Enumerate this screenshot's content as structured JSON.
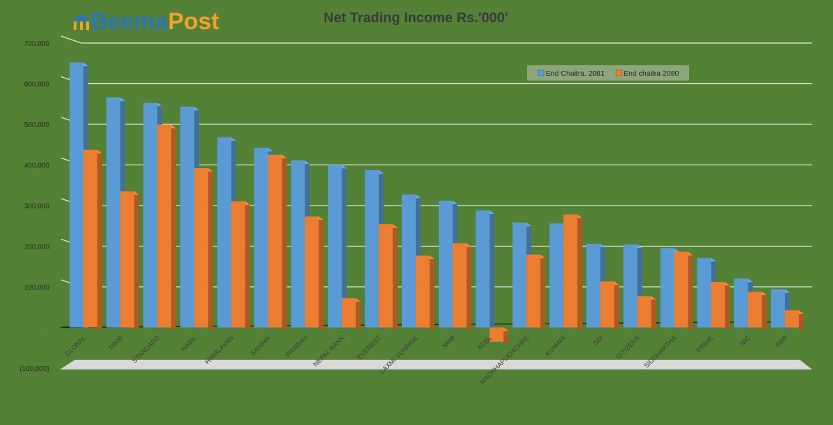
{
  "brand": {
    "name_part1": "Beema",
    "name_part2": "Post",
    "color_part1": "#2E75B6",
    "color_part2": "#F4A12B"
  },
  "chart_data": {
    "type": "bar",
    "title": "Net Trading Income  Rs.'000'",
    "xlabel": "",
    "ylabel": "",
    "ylim": [
      -100000,
      700000
    ],
    "yticks": [
      -100000,
      0,
      100000,
      200000,
      300000,
      400000,
      500000,
      600000,
      700000
    ],
    "ytick_labels": [
      "(100,000)",
      "-",
      "100,000",
      "200,000",
      "300,000",
      "400,000",
      "500,000",
      "600,000",
      "700,000"
    ],
    "grid": true,
    "legend_position": "top-right",
    "categories": [
      "GLOBAL",
      "NIMB",
      "STANDARD",
      "NABIL",
      "HIMALAYAN",
      "SANIMA",
      "PRABHU",
      "NEPAL BANK",
      "EVEREST",
      "LAXMI SUNRISE",
      "NMB",
      "ADBL",
      "MACHHAPUCHCHRE",
      "KUMARI",
      "SBI",
      "CITIZENS",
      "SIDDHARTHA",
      "PRIME",
      "NIC",
      "RBB"
    ],
    "series": [
      {
        "name": "End Chaitra, 2081",
        "color": "#5B9BD5",
        "values": [
          652000,
          566000,
          553000,
          543000,
          468000,
          442000,
          411000,
          400000,
          387000,
          327000,
          312000,
          288000,
          258000,
          256000,
          206000,
          204000,
          195000,
          171000,
          120000,
          94000
        ]
      },
      {
        "name": "End chaitra 2080",
        "color": "#ED7D31",
        "values": [
          437000,
          335000,
          499000,
          392000,
          310000,
          425000,
          273000,
          72000,
          254000,
          177000,
          207000,
          -35000,
          179000,
          278000,
          113000,
          77000,
          186000,
          112000,
          88000,
          42000
        ]
      }
    ]
  }
}
